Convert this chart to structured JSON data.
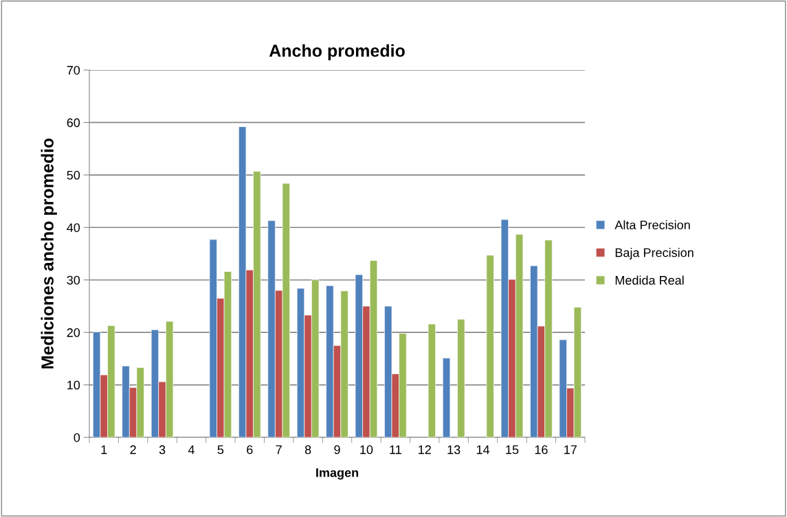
{
  "chart_data": {
    "type": "bar",
    "title": "Ancho promedio",
    "xlabel": "Imagen",
    "ylabel": "Mediciones ancho promedio",
    "categories": [
      "1",
      "2",
      "3",
      "4",
      "5",
      "6",
      "7",
      "8",
      "9",
      "10",
      "11",
      "12",
      "13",
      "14",
      "15",
      "16",
      "17"
    ],
    "series": [
      {
        "name": "Alta Precision",
        "color": "#4f81bd",
        "values": [
          20.1,
          13.6,
          20.5,
          null,
          37.7,
          59.2,
          41.3,
          28.4,
          28.9,
          31.0,
          25.0,
          null,
          15.1,
          null,
          41.5,
          32.7,
          18.6
        ]
      },
      {
        "name": "Baja Precision",
        "color": "#c0504d",
        "values": [
          11.9,
          9.5,
          10.6,
          null,
          26.5,
          31.9,
          28.0,
          23.3,
          17.5,
          25.0,
          12.1,
          null,
          null,
          null,
          30.1,
          21.2,
          9.4
        ]
      },
      {
        "name": "Medida Real",
        "color": "#9bbb59",
        "values": [
          21.3,
          13.3,
          22.1,
          null,
          31.6,
          50.7,
          48.4,
          30.0,
          27.9,
          33.7,
          19.8,
          21.6,
          22.5,
          34.7,
          38.7,
          37.6,
          24.8
        ]
      }
    ],
    "ylim": [
      0,
      70
    ],
    "yticks": [
      0,
      10,
      20,
      30,
      40,
      50,
      60,
      70
    ],
    "grid": "y",
    "legend": "right"
  }
}
